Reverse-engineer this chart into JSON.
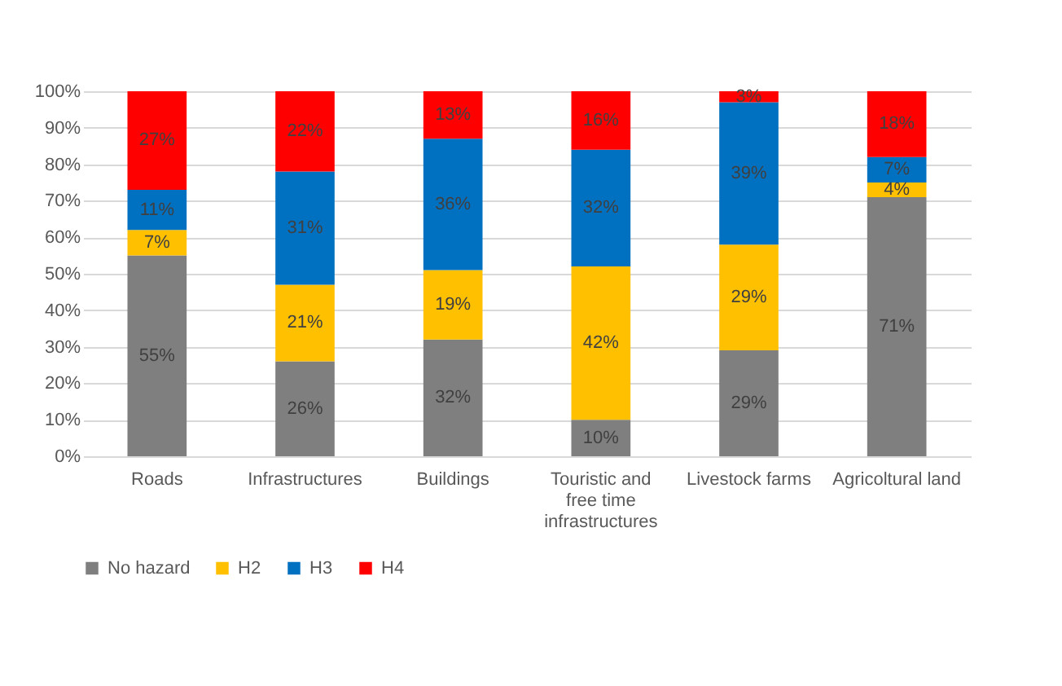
{
  "chart_data": {
    "type": "bar",
    "stacked": true,
    "categories": [
      "Roads",
      "Infrastructures",
      "Buildings",
      "Touristic and free time infrastructures",
      "Livestock farms",
      "Agricoltural land"
    ],
    "series": [
      {
        "name": "No hazard",
        "color": "#7f7f7f",
        "values": [
          55,
          26,
          32,
          10,
          29,
          71
        ],
        "value_labels": [
          "55%",
          "26%",
          "32%",
          "10%",
          "29%",
          "71%"
        ]
      },
      {
        "name": "H2",
        "color": "#ffc000",
        "values": [
          7,
          21,
          19,
          42,
          29,
          4
        ],
        "value_labels": [
          "7%",
          "21%",
          "19%",
          "42%",
          "29%",
          "4%"
        ]
      },
      {
        "name": "H3",
        "color": "#0070c0",
        "values": [
          11,
          31,
          36,
          32,
          39,
          7
        ],
        "value_labels": [
          "11%",
          "31%",
          "36%",
          "32%",
          "39%",
          "7%"
        ]
      },
      {
        "name": "H4",
        "color": "#ff0000",
        "values": [
          27,
          22,
          13,
          16,
          3,
          18
        ],
        "value_labels": [
          "27%",
          "22%",
          "13%",
          "16%",
          "3%",
          "18%"
        ]
      }
    ],
    "ylim": [
      0,
      100
    ],
    "yticks": [
      {
        "value": 0,
        "label": "0%"
      },
      {
        "value": 10,
        "label": "10%"
      },
      {
        "value": 20,
        "label": "20%"
      },
      {
        "value": 30,
        "label": "30%"
      },
      {
        "value": 40,
        "label": "40%"
      },
      {
        "value": 50,
        "label": "50%"
      },
      {
        "value": 60,
        "label": "60%"
      },
      {
        "value": 70,
        "label": "70%"
      },
      {
        "value": 80,
        "label": "80%"
      },
      {
        "value": 90,
        "label": "90%"
      },
      {
        "value": 100,
        "label": "100%"
      }
    ],
    "grid": "y",
    "legend": "bottom"
  }
}
